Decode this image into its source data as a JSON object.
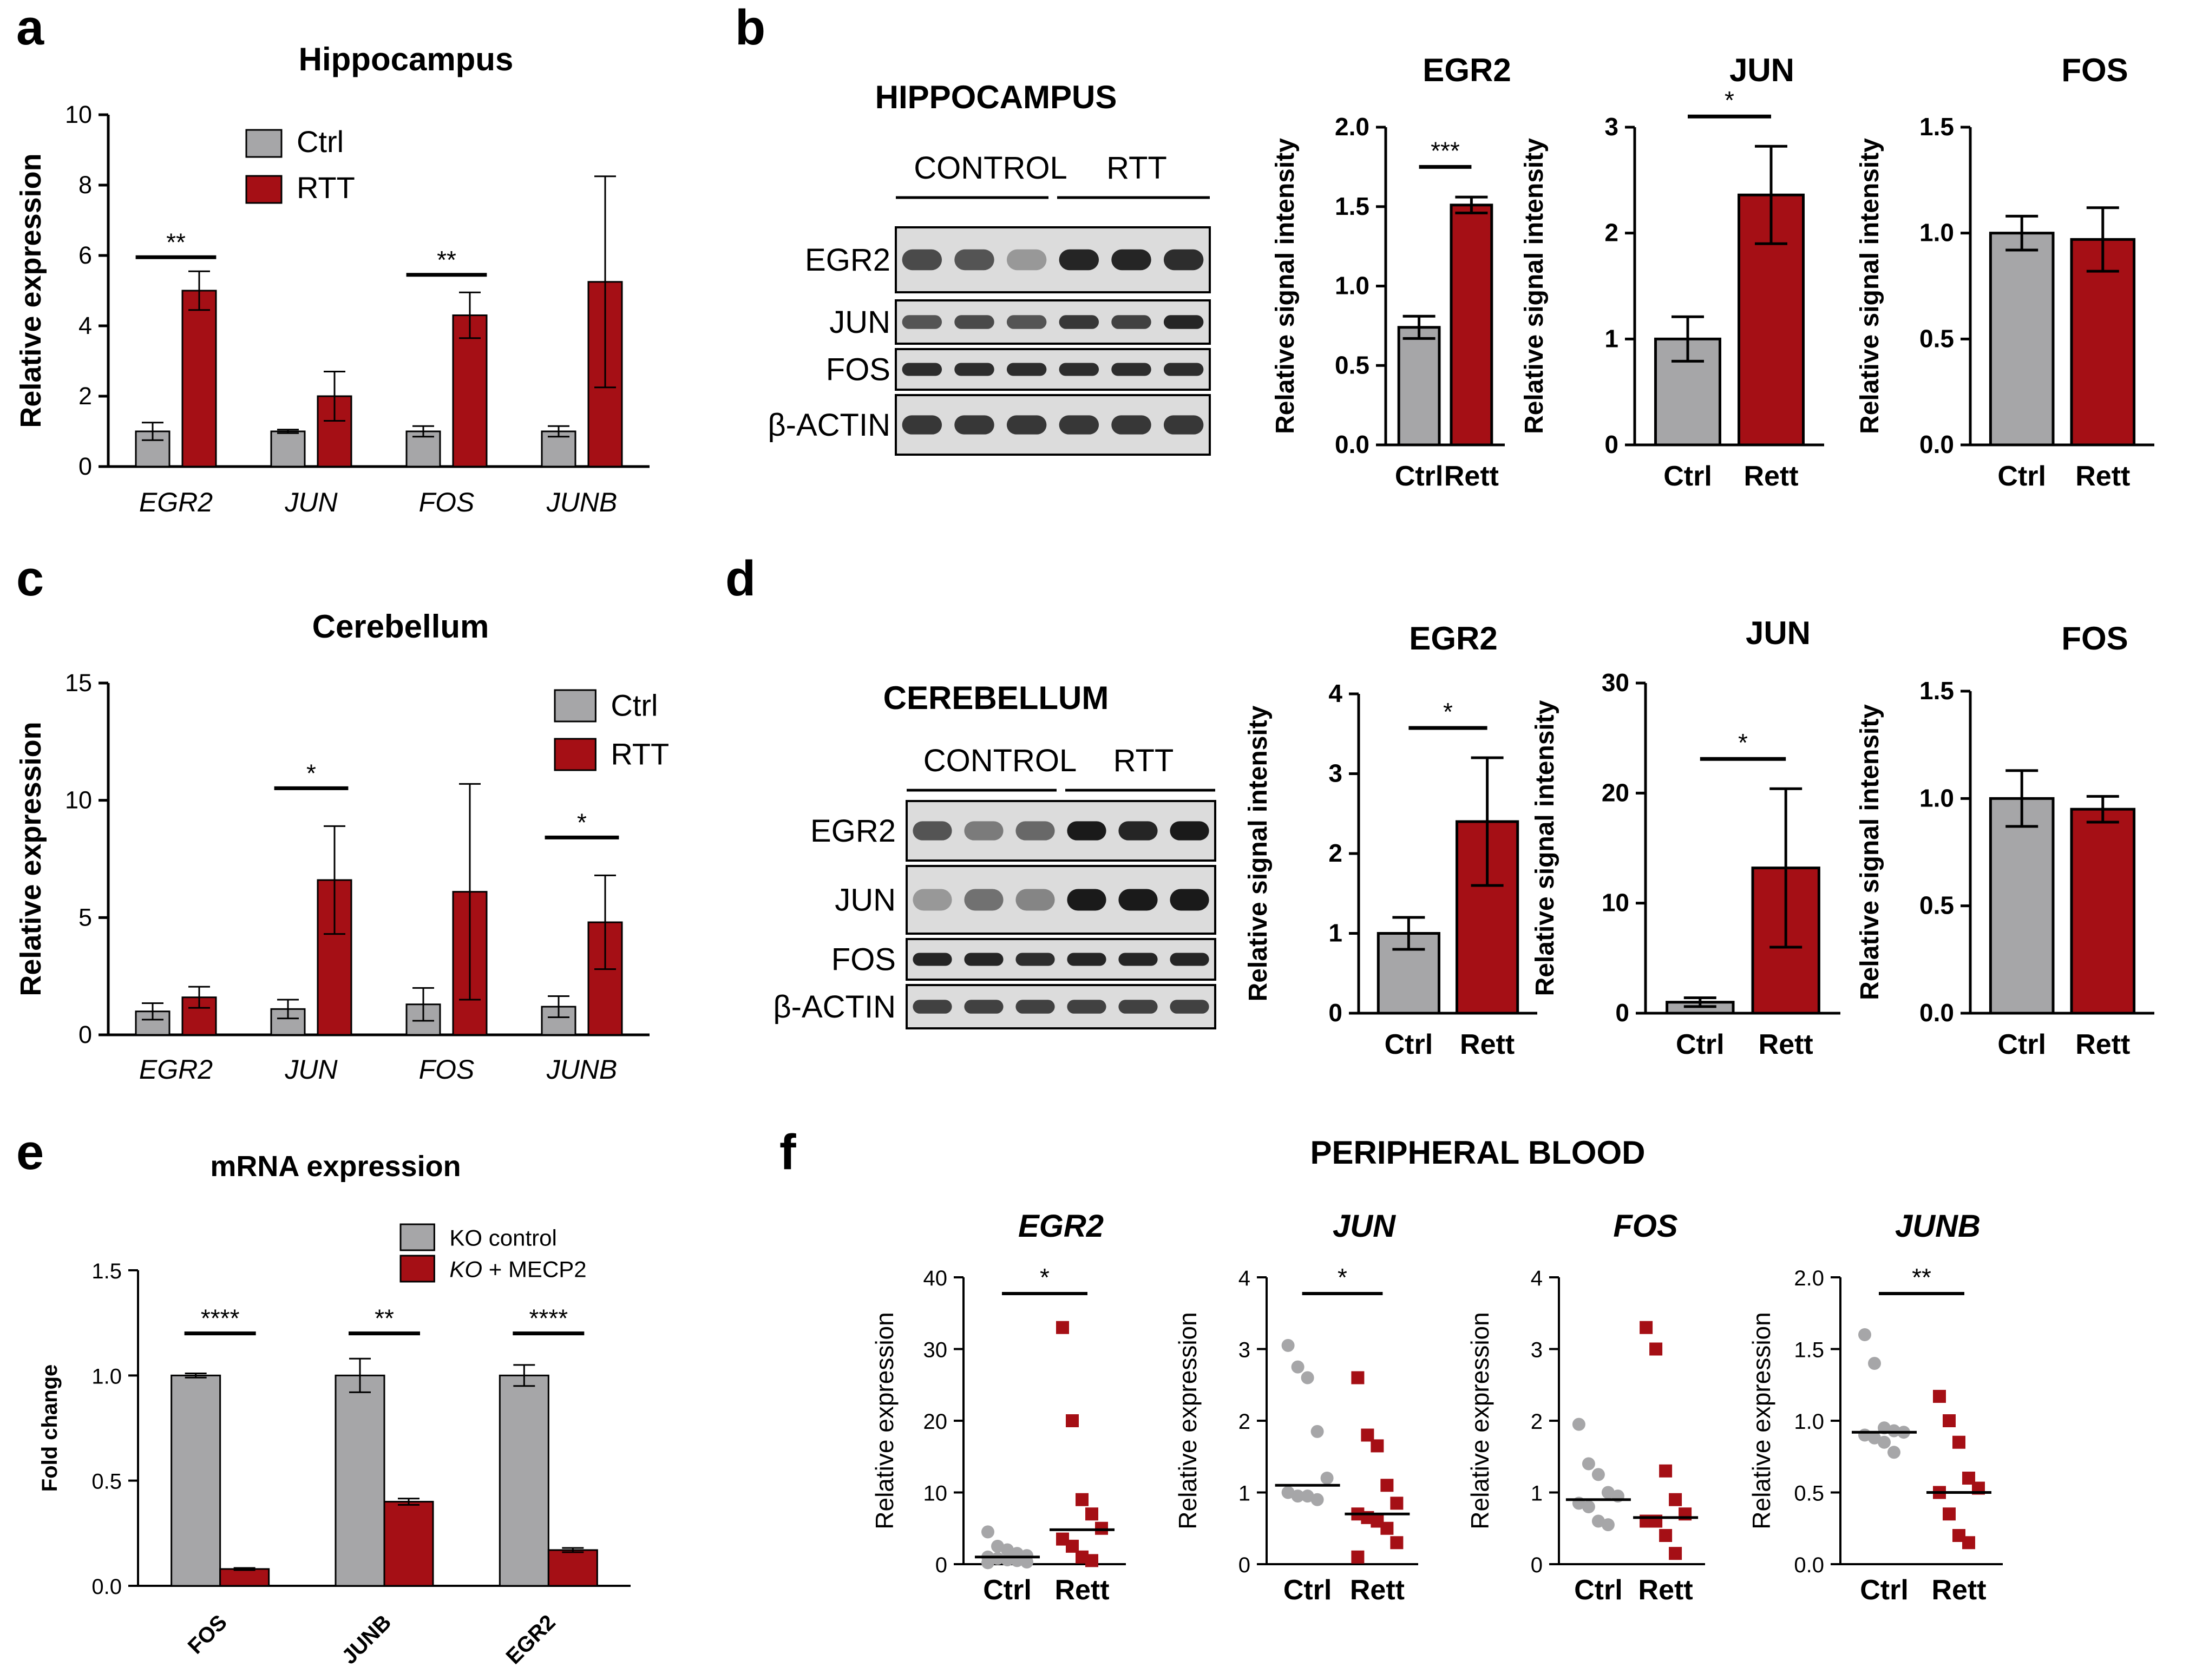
{
  "colors": {
    "ctrl": "#a6a6a8",
    "rtt": "#a50f15",
    "axis": "#000000"
  },
  "panel_labels": [
    "a",
    "b",
    "c",
    "d",
    "e",
    "f"
  ],
  "blots": [
    {
      "title": "HIPPOCAMPUS",
      "columns": [
        "CONTROL",
        "RTT"
      ],
      "rows": [
        "EGR2",
        "JUN",
        "FOS",
        "β-ACTIN"
      ]
    },
    {
      "title": "CEREBELLUM",
      "columns": [
        "CONTROL",
        "RTT"
      ],
      "rows": [
        "EGR2",
        "JUN",
        "FOS",
        "β-ACTIN"
      ]
    }
  ],
  "f_title": "PERIPHERAL BLOOD",
  "chart_data": [
    {
      "id": "a",
      "type": "bar",
      "title": "Hippocampus",
      "xlabel": "",
      "ylabel": "Relative expression",
      "ylim": [
        0,
        10
      ],
      "yticks": [
        "0",
        "2",
        "4",
        "6",
        "8",
        "10"
      ],
      "categories": [
        "EGR2",
        "JUN",
        "FOS",
        "JUNB"
      ],
      "series": [
        {
          "name": "Ctrl",
          "values": [
            1.0,
            1.0,
            1.0,
            1.0
          ],
          "errors": [
            0.25,
            0.05,
            0.15,
            0.15
          ]
        },
        {
          "name": "RTT",
          "values": [
            5.0,
            2.0,
            4.3,
            5.25
          ],
          "errors": [
            0.55,
            0.7,
            0.65,
            3.0
          ]
        }
      ],
      "significance": [
        {
          "category": "EGR2",
          "label": "**"
        },
        {
          "category": "FOS",
          "label": "**"
        }
      ],
      "legend": "top-center"
    },
    {
      "id": "b-EGR2",
      "type": "bar",
      "title": "EGR2",
      "xlabel": "",
      "ylabel": "Relative signal intensity",
      "ylim": [
        0,
        2.0
      ],
      "yticks": [
        "0.0",
        "0.5",
        "1.0",
        "1.5",
        "2.0"
      ],
      "categories": [
        "Ctrl",
        "Rett"
      ],
      "values": [
        0.74,
        1.51
      ],
      "errors": [
        0.07,
        0.05
      ],
      "significance": [
        {
          "label": "***"
        }
      ]
    },
    {
      "id": "b-JUN",
      "type": "bar",
      "title": "JUN",
      "xlabel": "",
      "ylabel": "Relative signal intensity",
      "ylim": [
        0,
        3
      ],
      "yticks": [
        "0",
        "1",
        "2",
        "3"
      ],
      "categories": [
        "Ctrl",
        "Rett"
      ],
      "values": [
        1.0,
        2.36
      ],
      "errors": [
        0.21,
        0.46
      ],
      "significance": [
        {
          "label": "*"
        }
      ]
    },
    {
      "id": "b-FOS",
      "type": "bar",
      "title": "FOS",
      "xlabel": "",
      "ylabel": "Relative signal intensity",
      "ylim": [
        0,
        1.5
      ],
      "yticks": [
        "0.0",
        "0.5",
        "1.0",
        "1.5"
      ],
      "categories": [
        "Ctrl",
        "Rett"
      ],
      "values": [
        1.0,
        0.97
      ],
      "errors": [
        0.08,
        0.15
      ],
      "significance": []
    },
    {
      "id": "c",
      "type": "bar",
      "title": "Cerebellum",
      "xlabel": "",
      "ylabel": "Relative expression",
      "ylim": [
        0,
        15
      ],
      "yticks": [
        "0",
        "5",
        "10",
        "15"
      ],
      "categories": [
        "EGR2",
        "JUN",
        "FOS",
        "JUNB"
      ],
      "series": [
        {
          "name": "Ctrl",
          "values": [
            1.0,
            1.1,
            1.3,
            1.2
          ],
          "errors": [
            0.35,
            0.4,
            0.7,
            0.45
          ]
        },
        {
          "name": "RTT",
          "values": [
            1.6,
            6.6,
            6.1,
            4.8
          ],
          "errors": [
            0.45,
            2.3,
            4.6,
            2.0
          ]
        }
      ],
      "significance": [
        {
          "category": "JUN",
          "label": "*"
        },
        {
          "category": "JUNB",
          "label": "*"
        }
      ],
      "legend": "top-right"
    },
    {
      "id": "d-EGR2",
      "type": "bar",
      "title": "EGR2",
      "xlabel": "",
      "ylabel": "Relative signal intensity",
      "ylim": [
        0,
        4
      ],
      "yticks": [
        "0",
        "1",
        "2",
        "3",
        "4"
      ],
      "categories": [
        "Ctrl",
        "Rett"
      ],
      "values": [
        1.0,
        2.4
      ],
      "errors": [
        0.2,
        0.8
      ],
      "significance": [
        {
          "label": "*"
        }
      ]
    },
    {
      "id": "d-JUN",
      "type": "bar",
      "title": "JUN",
      "xlabel": "",
      "ylabel": "Relative signal intensity",
      "ylim": [
        0,
        30
      ],
      "yticks": [
        "0",
        "10",
        "20",
        "30"
      ],
      "categories": [
        "Ctrl",
        "Rett"
      ],
      "values": [
        1.0,
        13.2
      ],
      "errors": [
        0.4,
        7.2
      ],
      "significance": [
        {
          "label": "*"
        }
      ]
    },
    {
      "id": "d-FOS",
      "type": "bar",
      "title": "FOS",
      "xlabel": "",
      "ylabel": "Relative signal intensity",
      "ylim": [
        0,
        1.5
      ],
      "yticks": [
        "0.0",
        "0.5",
        "1.0",
        "1.5"
      ],
      "categories": [
        "Ctrl",
        "Rett"
      ],
      "values": [
        1.0,
        0.95
      ],
      "errors": [
        0.13,
        0.06
      ],
      "significance": []
    },
    {
      "id": "e",
      "type": "bar",
      "title": "mRNA expression",
      "xlabel": "",
      "ylabel": "Fold change",
      "ylim": [
        0,
        1.5
      ],
      "yticks": [
        "0.0",
        "0.5",
        "1.0",
        "1.5"
      ],
      "categories": [
        "FOS",
        "JUNB",
        "EGR2"
      ],
      "series": [
        {
          "name": "KO control",
          "values": [
            1.0,
            1.0,
            1.0
          ],
          "errors": [
            0.01,
            0.08,
            0.05
          ]
        },
        {
          "name": "KO + MECP2",
          "values": [
            0.08,
            0.4,
            0.17
          ],
          "errors": [
            0.005,
            0.015,
            0.01
          ]
        }
      ],
      "legend_parts": [
        [
          "KO control",
          ""
        ],
        [
          "KO",
          " + MECP2"
        ]
      ],
      "significance": [
        {
          "category": "FOS",
          "label": "****"
        },
        {
          "category": "JUNB",
          "label": "**"
        },
        {
          "category": "EGR2",
          "label": "****"
        }
      ],
      "legend": "top-right"
    },
    {
      "id": "f-EGR2",
      "type": "scatter",
      "title": "EGR2",
      "xlabel": "",
      "ylabel": "Relative expression",
      "ylim": [
        0,
        40
      ],
      "yticks": [
        "0",
        "10",
        "20",
        "30",
        "40"
      ],
      "categories": [
        "Ctrl",
        "Rett"
      ],
      "groups": [
        {
          "name": "Ctrl",
          "points": [
            4.5,
            2.5,
            2.0,
            1.5,
            1.2,
            1.0,
            0.8,
            0.6,
            0.5,
            0.3,
            0.2
          ],
          "median": 1.0
        },
        {
          "name": "Rett",
          "points": [
            33.0,
            20.0,
            9.0,
            7.0,
            5.0,
            3.5,
            2.5,
            1.0,
            0.5
          ],
          "median": 4.8
        }
      ],
      "significance": [
        {
          "label": "*"
        }
      ]
    },
    {
      "id": "f-JUN",
      "type": "scatter",
      "title": "JUN",
      "xlabel": "",
      "ylabel": "Relative expression",
      "ylim": [
        0,
        4
      ],
      "yticks": [
        "0",
        "1",
        "2",
        "3",
        "4"
      ],
      "categories": [
        "Ctrl",
        "Rett"
      ],
      "groups": [
        {
          "name": "Ctrl",
          "points": [
            3.05,
            2.75,
            2.6,
            1.85,
            1.2,
            1.0,
            0.95,
            0.95,
            0.9
          ],
          "median": 1.1
        },
        {
          "name": "Rett",
          "points": [
            2.6,
            1.8,
            1.65,
            1.1,
            0.85,
            0.7,
            0.65,
            0.6,
            0.5,
            0.3,
            0.1
          ],
          "median": 0.7
        }
      ],
      "significance": [
        {
          "label": "*"
        }
      ]
    },
    {
      "id": "f-FOS",
      "type": "scatter",
      "title": "FOS",
      "xlabel": "",
      "ylabel": "Relative expression",
      "ylim": [
        0,
        4
      ],
      "yticks": [
        "0",
        "1",
        "2",
        "3",
        "4"
      ],
      "categories": [
        "Ctrl",
        "Rett"
      ],
      "groups": [
        {
          "name": "Ctrl",
          "points": [
            1.95,
            1.4,
            1.25,
            1.0,
            0.95,
            0.85,
            0.8,
            0.6,
            0.55
          ],
          "median": 0.9
        },
        {
          "name": "Rett",
          "points": [
            3.3,
            3.0,
            1.3,
            0.9,
            0.7,
            0.6,
            0.6,
            0.4,
            0.15
          ],
          "median": 0.65
        }
      ],
      "significance": []
    },
    {
      "id": "f-JUNB",
      "type": "scatter",
      "title": "JUNB",
      "xlabel": "",
      "ylabel": "Relative expression",
      "ylim": [
        0,
        2.0
      ],
      "yticks": [
        "0.0",
        "0.5",
        "1.0",
        "1.5",
        "2.0"
      ],
      "categories": [
        "Ctrl",
        "Rett"
      ],
      "groups": [
        {
          "name": "Ctrl",
          "points": [
            1.6,
            1.4,
            0.95,
            0.93,
            0.92,
            0.9,
            0.88,
            0.85,
            0.78
          ],
          "median": 0.92
        },
        {
          "name": "Rett",
          "points": [
            1.17,
            1.0,
            0.85,
            0.6,
            0.53,
            0.5,
            0.35,
            0.2,
            0.15
          ],
          "median": 0.5
        }
      ],
      "significance": [
        {
          "label": "**"
        }
      ]
    }
  ]
}
